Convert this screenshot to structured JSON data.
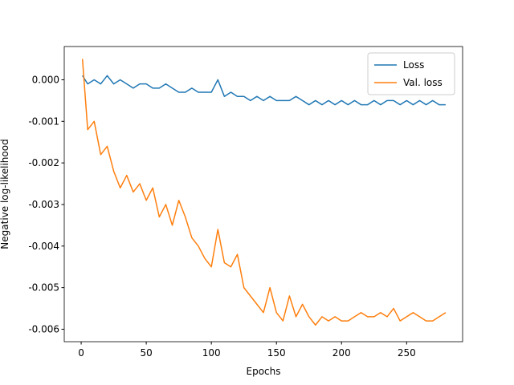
{
  "chart_data": {
    "type": "line",
    "xlabel": "Epochs",
    "ylabel": "Negative log-likelihood",
    "x": [
      1,
      5,
      10,
      15,
      20,
      25,
      30,
      35,
      40,
      45,
      50,
      55,
      60,
      65,
      70,
      75,
      80,
      85,
      90,
      95,
      100,
      105,
      110,
      115,
      120,
      125,
      130,
      135,
      140,
      145,
      150,
      155,
      160,
      165,
      170,
      175,
      180,
      185,
      190,
      195,
      200,
      205,
      210,
      215,
      220,
      225,
      230,
      235,
      240,
      245,
      250,
      255,
      260,
      265,
      270,
      275,
      280
    ],
    "series": [
      {
        "name": "Loss",
        "color": "#1f77b4",
        "values": [
          0.0001,
          -0.0001,
          0.0,
          -0.0001,
          0.0001,
          -0.0001,
          0.0,
          -0.0001,
          -0.0002,
          -0.0001,
          -0.0001,
          -0.0002,
          -0.0002,
          -0.0001,
          -0.0002,
          -0.0003,
          -0.0003,
          -0.0002,
          -0.0003,
          -0.0003,
          -0.0003,
          0.0,
          -0.0004,
          -0.0003,
          -0.0004,
          -0.0004,
          -0.0005,
          -0.0004,
          -0.0005,
          -0.0004,
          -0.0005,
          -0.0005,
          -0.0005,
          -0.0004,
          -0.0005,
          -0.0006,
          -0.0005,
          -0.0006,
          -0.0005,
          -0.0006,
          -0.0005,
          -0.0006,
          -0.0005,
          -0.0006,
          -0.0006,
          -0.0005,
          -0.0006,
          -0.0005,
          -0.0005,
          -0.0006,
          -0.0005,
          -0.0006,
          -0.0005,
          -0.0006,
          -0.0005,
          -0.0006,
          -0.0006
        ]
      },
      {
        "name": "Val. loss",
        "color": "#ff7f0e",
        "values": [
          0.0005,
          -0.0012,
          -0.001,
          -0.0018,
          -0.0016,
          -0.0022,
          -0.0026,
          -0.0023,
          -0.0027,
          -0.0025,
          -0.0029,
          -0.0026,
          -0.0033,
          -0.003,
          -0.0035,
          -0.0029,
          -0.0033,
          -0.0038,
          -0.004,
          -0.0043,
          -0.0045,
          -0.0036,
          -0.0044,
          -0.0045,
          -0.0042,
          -0.005,
          -0.0052,
          -0.0054,
          -0.0056,
          -0.005,
          -0.0056,
          -0.0058,
          -0.0052,
          -0.0057,
          -0.0054,
          -0.0057,
          -0.0059,
          -0.0057,
          -0.0058,
          -0.0057,
          -0.0058,
          -0.0058,
          -0.0057,
          -0.0056,
          -0.0057,
          -0.0057,
          -0.0056,
          -0.0057,
          -0.0055,
          -0.0058,
          -0.0057,
          -0.0056,
          -0.0057,
          -0.0058,
          -0.0058,
          -0.0057,
          -0.0056
        ]
      }
    ],
    "xlim": [
      -13,
      293
    ],
    "xticks": [
      0,
      50,
      100,
      150,
      200,
      250
    ],
    "ylim": [
      -0.0063,
      0.0008
    ],
    "yticks": [
      {
        "value": 0,
        "label": "0.000"
      },
      {
        "value": -0.001,
        "label": "-0.001"
      },
      {
        "value": -0.002,
        "label": "-0.002"
      },
      {
        "value": -0.003,
        "label": "-0.003"
      },
      {
        "value": -0.004,
        "label": "-0.004"
      },
      {
        "value": -0.005,
        "label": "-0.005"
      },
      {
        "value": -0.006,
        "label": "-0.006"
      }
    ],
    "legend": "upper right"
  }
}
